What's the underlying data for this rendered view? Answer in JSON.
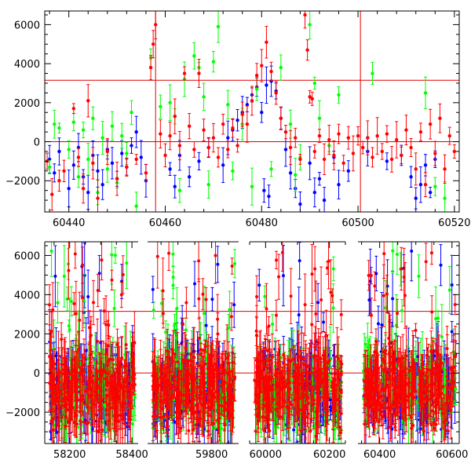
{
  "chart_data": [
    {
      "type": "scatter",
      "panel": "top",
      "xlim": [
        60435,
        60521
      ],
      "ylim": [
        -3600,
        6700
      ],
      "x_ticks": [
        60440,
        60460,
        60480,
        60500,
        60520
      ],
      "x_tick_labels": [
        "60440",
        "60460",
        "60480",
        "60500",
        "60520"
      ],
      "y_ticks": [
        -2000,
        0,
        2000,
        4000,
        6000
      ],
      "y_tick_labels": [
        "−2000",
        "0",
        "2000",
        "4000",
        "6000"
      ],
      "grid": false,
      "reference_lines": {
        "horizontal": [
          0,
          3150
        ],
        "vertical": [
          60458,
          60500.5
        ]
      },
      "series": [
        {
          "color": "#0000ff",
          "points": [
            [
              60436,
              -900
            ],
            [
              60437,
              -1600
            ],
            [
              60438,
              -500
            ],
            [
              60440,
              -2400
            ],
            [
              60441,
              -1200
            ],
            [
              60442,
              -300
            ],
            [
              60443,
              -1800
            ],
            [
              60444,
              -2600
            ],
            [
              60445,
              -700
            ],
            [
              60446,
              -1500
            ],
            [
              60447,
              -2200
            ],
            [
              60448,
              -400
            ],
            [
              60449,
              -1100
            ],
            [
              60450,
              -1900
            ],
            [
              60451,
              -600
            ],
            [
              60452,
              -1300
            ],
            [
              60453,
              -200
            ],
            [
              60454,
              500
            ],
            [
              60455,
              -800
            ],
            [
              60456,
              -2000
            ],
            [
              60461,
              -1400
            ],
            [
              60462,
              -2300
            ],
            [
              60463,
              -700
            ],
            [
              60465,
              -1800
            ],
            [
              60467,
              -1000
            ],
            [
              60469,
              -300
            ],
            [
              60472,
              -1200
            ],
            [
              60473,
              200
            ],
            [
              60474,
              600
            ],
            [
              60475,
              1100
            ],
            [
              60476,
              1500
            ],
            [
              60477,
              1900
            ],
            [
              60478,
              2400
            ],
            [
              60479,
              2800
            ],
            [
              60480,
              1500
            ],
            [
              60480.5,
              -2500
            ],
            [
              60481,
              2900
            ],
            [
              60481.5,
              -2800
            ],
            [
              60482,
              3100
            ],
            [
              60483,
              2600
            ],
            [
              60484,
              1200
            ],
            [
              60485,
              -400
            ],
            [
              60486,
              -1600
            ],
            [
              60487,
              -2400
            ],
            [
              60488,
              -3200
            ],
            [
              60490,
              -1100
            ],
            [
              60491,
              -2600
            ],
            [
              60492,
              -1900
            ],
            [
              60493,
              -3000
            ],
            [
              60495,
              -800
            ],
            [
              60496,
              -2200
            ],
            [
              60498,
              -1500
            ],
            [
              60502,
              -500
            ],
            [
              60506,
              -1000
            ],
            [
              60509,
              -700
            ],
            [
              60511,
              -1800
            ],
            [
              60512,
              -2900
            ],
            [
              60513,
              -2200
            ],
            [
              60514,
              -1200
            ],
            [
              60515,
              -2600
            ],
            [
              60516,
              -900
            ]
          ]
        },
        {
          "color": "#00ff00",
          "points": [
            [
              60436,
              -1300
            ],
            [
              60437,
              900
            ],
            [
              60438,
              700
            ],
            [
              60440,
              -400
            ],
            [
              60441,
              1000
            ],
            [
              60442,
              -1800
            ],
            [
              60443,
              600
            ],
            [
              60444,
              -900
            ],
            [
              60445,
              1200
            ],
            [
              60446,
              -2600
            ],
            [
              60447,
              200
            ],
            [
              60448,
              -1400
            ],
            [
              60449,
              800
            ],
            [
              60450,
              -2100
            ],
            [
              60451,
              300
            ],
            [
              60452,
              -600
            ],
            [
              60453,
              1500
            ],
            [
              60454,
              -3300
            ],
            [
              60457,
              4300
            ],
            [
              60459,
              1800
            ],
            [
              60461,
              2000
            ],
            [
              60462,
              1300
            ],
            [
              60463,
              -2500
            ],
            [
              60464,
              3200
            ],
            [
              60466,
              4400
            ],
            [
              60467,
              3800
            ],
            [
              60468,
              2300
            ],
            [
              60469,
              -2200
            ],
            [
              60470,
              4100
            ],
            [
              60471,
              5900
            ],
            [
              60473,
              1900
            ],
            [
              60474,
              -1500
            ],
            [
              60476,
              900
            ],
            [
              60478,
              -2300
            ],
            [
              60479,
              2700
            ],
            [
              60482,
              -1400
            ],
            [
              60484,
              3800
            ],
            [
              60486,
              900
            ],
            [
              60487,
              -1700
            ],
            [
              60488,
              -800
            ],
            [
              60490,
              6000
            ],
            [
              60491,
              3000
            ],
            [
              60492,
              1200
            ],
            [
              60494,
              -200
            ],
            [
              60496,
              2400
            ],
            [
              60503,
              3500
            ],
            [
              60514,
              2500
            ],
            [
              60516,
              -2300
            ],
            [
              60518,
              -2900
            ]
          ]
        },
        {
          "color": "#ff0000",
          "points": [
            [
              60435.5,
              -1000
            ],
            [
              60436.5,
              -2700
            ],
            [
              60438,
              -2000
            ],
            [
              60439,
              -1500
            ],
            [
              60441,
              1700
            ],
            [
              60442,
              -800
            ],
            [
              60443,
              -2400
            ],
            [
              60444,
              2100
            ],
            [
              60445,
              -1100
            ],
            [
              60446,
              -2900
            ],
            [
              60448,
              -500
            ],
            [
              60450,
              -1900
            ],
            [
              60452,
              -1300
            ],
            [
              60454,
              -900
            ],
            [
              60456,
              -1600
            ],
            [
              60457,
              3800
            ],
            [
              60457.5,
              5000
            ],
            [
              60458,
              6000
            ],
            [
              60459,
              400
            ],
            [
              60460,
              -700
            ],
            [
              60461,
              300
            ],
            [
              60462,
              1300
            ],
            [
              60463,
              -200
            ],
            [
              60464,
              3500
            ],
            [
              60465,
              800
            ],
            [
              60466,
              -400
            ],
            [
              60467,
              3500
            ],
            [
              60468,
              600
            ],
            [
              60469,
              -300
            ],
            [
              60470,
              200
            ],
            [
              60471,
              -800
            ],
            [
              60472,
              900
            ],
            [
              60473,
              -400
            ],
            [
              60474,
              700
            ],
            [
              60475,
              -200
            ],
            [
              60476,
              1400
            ],
            [
              60477,
              900
            ],
            [
              60478,
              2100
            ],
            [
              60479,
              3400
            ],
            [
              60480,
              3900
            ],
            [
              60481,
              5100
            ],
            [
              60482,
              3600
            ],
            [
              60483,
              2500
            ],
            [
              60484,
              1200
            ],
            [
              60485,
              500
            ],
            [
              60486,
              -300
            ],
            [
              60487,
              200
            ],
            [
              60488,
              -900
            ],
            [
              60489,
              6500
            ],
            [
              60489.5,
              4700
            ],
            [
              60490,
              2300
            ],
            [
              60490.5,
              2200
            ],
            [
              60491,
              -500
            ],
            [
              60492,
              300
            ],
            [
              60493,
              -900
            ],
            [
              60494,
              100
            ],
            [
              60495,
              -700
            ],
            [
              60496,
              400
            ],
            [
              60497,
              -1100
            ],
            [
              60498,
              200
            ],
            [
              60499,
              -600
            ],
            [
              60500,
              300
            ],
            [
              60501,
              -300
            ],
            [
              60502,
              200
            ],
            [
              60503,
              -800
            ],
            [
              60504,
              300
            ],
            [
              60505,
              -500
            ],
            [
              60506,
              400
            ],
            [
              60507,
              -900
            ],
            [
              60508,
              100
            ],
            [
              60509,
              -700
            ],
            [
              60510,
              600
            ],
            [
              60511,
              -300
            ],
            [
              60512,
              -1400
            ],
            [
              60513,
              500
            ],
            [
              60514,
              -2200
            ],
            [
              60515,
              900
            ],
            [
              60516,
              -600
            ],
            [
              60517,
              1200
            ],
            [
              60518,
              -1400
            ],
            [
              60519,
              300
            ],
            [
              60520,
              -500
            ]
          ]
        }
      ]
    },
    {
      "type": "scatter",
      "panel": "bottom",
      "segments": [
        {
          "xlim": [
            58120,
            58420
          ],
          "ticks": [
            58200,
            58400
          ],
          "tick_labels": [
            "58200",
            "58400"
          ]
        },
        {
          "xlim": [
            59610,
            59880
          ],
          "ticks": [
            59800
          ],
          "tick_labels": [
            "59800"
          ]
        },
        {
          "xlim": [
            59950,
            60250
          ],
          "ticks": [
            60000,
            60200
          ],
          "tick_labels": [
            "60000",
            "60200"
          ]
        },
        {
          "xlim": [
            60340,
            60620
          ],
          "ticks": [
            60400,
            60600
          ],
          "tick_labels": [
            "60400",
            "60600"
          ]
        }
      ],
      "ylim": [
        -3600,
        6700
      ],
      "y_ticks": [
        -2000,
        0,
        2000,
        4000,
        6000
      ],
      "y_tick_labels": [
        "−2000",
        "0",
        "2000",
        "4000",
        "6000"
      ],
      "grid": false,
      "reference_lines": {
        "horizontal": [
          0,
          3150
        ]
      },
      "series_colors": [
        "#0000ff",
        "#00ff00",
        "#ff0000"
      ],
      "data_ranges": [
        [
          [
            58135,
            58410
          ],
          [
            59625,
            59870
          ],
          [
            59965,
            60240
          ],
          [
            60355,
            60610
          ]
        ]
      ]
    }
  ]
}
